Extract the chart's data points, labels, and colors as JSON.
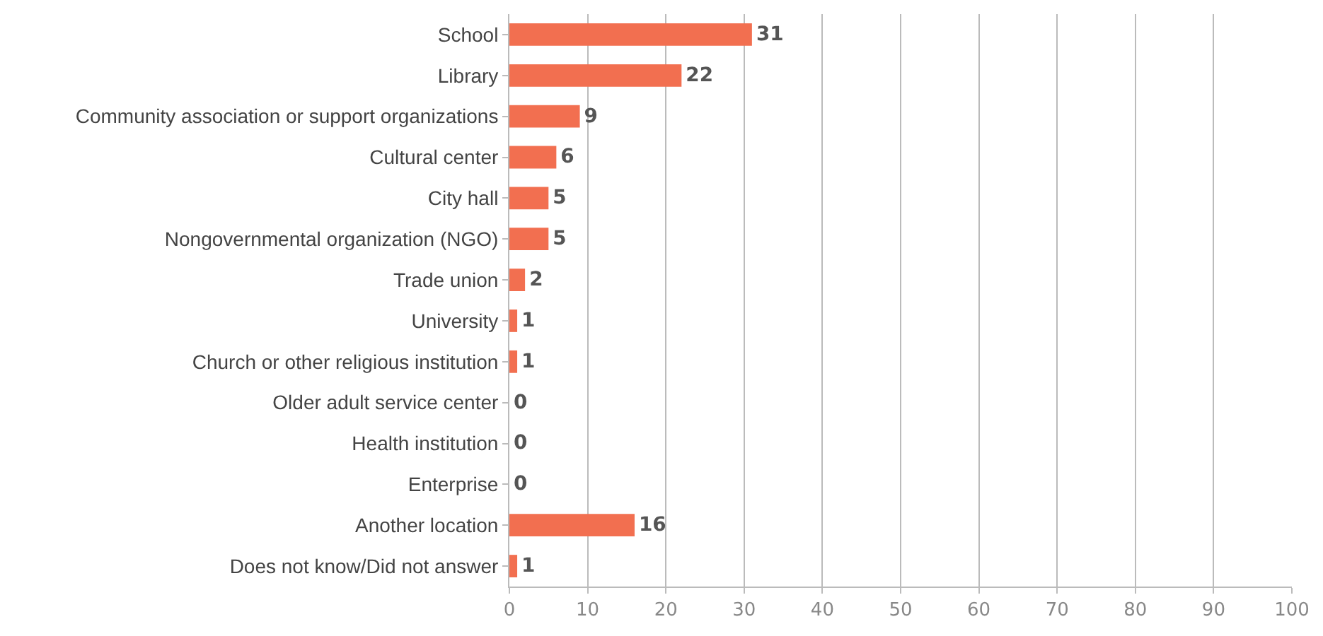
{
  "chart_data": {
    "type": "bar",
    "orientation": "horizontal",
    "categories": [
      "School",
      "Library",
      "Community association or support organizations",
      "Cultural center",
      "City hall",
      "Nongovernmental organization (NGO)",
      "Trade union",
      "University",
      "Church or other religious institution",
      "Older adult service center",
      "Health institution",
      "Enterprise",
      "Another location",
      "Does not know/Did not answer"
    ],
    "values": [
      31,
      22,
      9,
      6,
      5,
      5,
      2,
      1,
      1,
      0,
      0,
      0,
      16,
      1
    ],
    "color": "#f26f50",
    "xlim": [
      0,
      100
    ],
    "xticks": [
      0,
      10,
      20,
      30,
      40,
      50,
      60,
      70,
      80,
      90,
      100
    ],
    "grid": "x",
    "data_labels": true
  }
}
